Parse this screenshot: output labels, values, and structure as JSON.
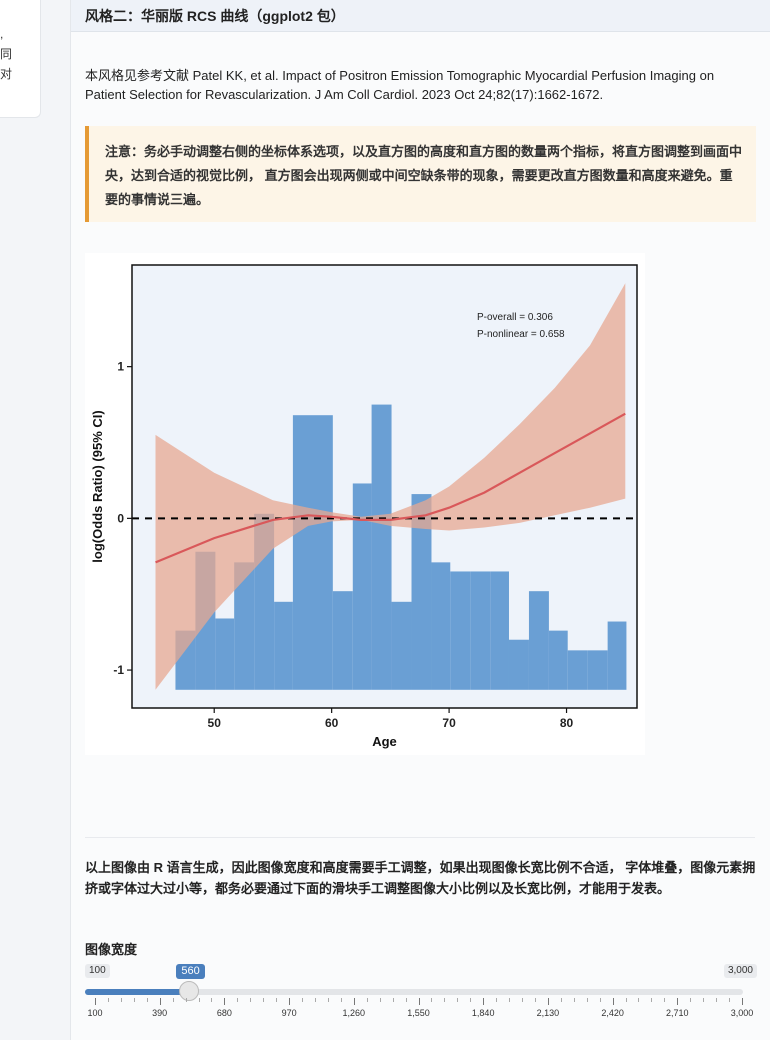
{
  "left_panel": {
    "lines": [
      ",",
      "同",
      "对"
    ]
  },
  "section": {
    "title": "风格二：华丽版 RCS 曲线（ggplot2 包）"
  },
  "reference": "本风格见参考文献 Patel KK, et al. Impact of Positron Emission Tomographic Myocardial Perfusion Imaging on Patient Selection for Revascularization. J Am Coll Cardiol. 2023 Oct 24;82(17):1662-1672.",
  "note": "注意：务必手动调整右侧的坐标体系选项，以及直方图的高度和直方图的数量两个指标，将直方图调整到画面中央，达到合适的视觉比例， 直方图会出现两侧或中间空缺条带的现象，需要更改直方图数量和高度来避免。重要的事情说三遍。",
  "instruction": "以上图像由 R 语言生成，因此图像宽度和高度需要手工调整，如果出现图像长宽比例不合适， 字体堆叠，图像元素拥挤或字体过大过小等，都务必要通过下面的滑块手工调整图像大小比例以及长宽比例，才能用于发表。",
  "slider": {
    "label": "图像宽度",
    "min": 100,
    "max": 3000,
    "value": 560,
    "min_label": "100",
    "max_label": "3,000",
    "value_label": "560",
    "tick_labels": [
      "100",
      "390",
      "680",
      "970",
      "1,260",
      "1,550",
      "1,840",
      "2,130",
      "2,420",
      "2,710",
      "3,000"
    ]
  },
  "colors": {
    "accent": "#4a7fbd",
    "note_border": "#e59a35",
    "histogram": "#6a9fd4",
    "ribbon": "#e7a892",
    "curve": "#d9585a"
  },
  "chart_data": {
    "type": "line",
    "xlabel": "Age",
    "ylabel": "log(Odds Ratio) (95% CI)",
    "xlim": [
      43,
      86
    ],
    "ylim": [
      -1.25,
      1.67
    ],
    "x_ticks": [
      50,
      60,
      70,
      80
    ],
    "y_ticks": [
      -1,
      0,
      1
    ],
    "reference_line": 0,
    "annotations": [
      "P-overall = 0.306",
      "P-nonlinear = 0.658"
    ],
    "curve": {
      "x": [
        45,
        50,
        55,
        58,
        60,
        62.5,
        65,
        68,
        70,
        73,
        76,
        79,
        82,
        85
      ],
      "y": [
        -0.29,
        -0.13,
        -0.01,
        0.02,
        0.01,
        -0.01,
        -0.01,
        0.02,
        0.07,
        0.17,
        0.3,
        0.43,
        0.56,
        0.69
      ]
    },
    "ci_lower": [
      -1.13,
      -0.62,
      -0.2,
      -0.05,
      -0.02,
      -0.01,
      -0.05,
      -0.07,
      -0.08,
      -0.06,
      -0.03,
      0.02,
      0.07,
      0.13
    ],
    "ci_upper": [
      0.55,
      0.3,
      0.12,
      0.07,
      0.04,
      0.01,
      0.03,
      0.12,
      0.21,
      0.4,
      0.62,
      0.86,
      1.14,
      1.55
    ],
    "histogram": {
      "bin_edges": [
        46.7,
        48.4,
        50.1,
        51.7,
        53.4,
        55.1,
        56.7,
        60.1,
        61.8,
        63.4,
        65.1,
        66.8,
        68.5,
        70.1,
        71.8,
        73.5,
        75.1,
        76.8,
        78.5,
        80.1,
        81.8,
        83.5,
        85.1
      ],
      "tops": [
        -0.74,
        -0.22,
        -0.66,
        -0.29,
        0.03,
        -0.55,
        0.68,
        -0.48,
        0.23,
        0.75,
        -0.55,
        0.16,
        -0.29,
        -0.35,
        -0.35,
        -0.35,
        -0.8,
        -0.48,
        -0.74,
        -0.87,
        -0.87,
        -0.68
      ],
      "baseline": -1.13
    }
  }
}
